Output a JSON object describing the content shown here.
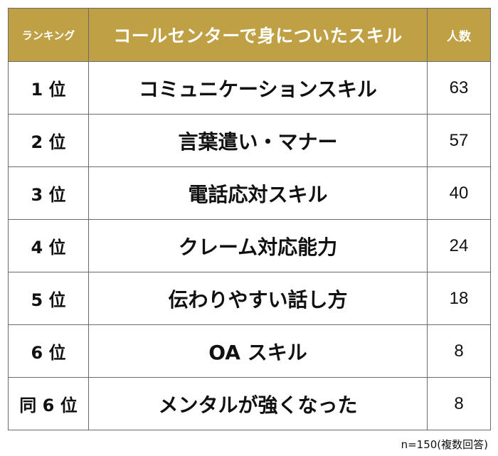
{
  "table": {
    "headers": {
      "rank": "ランキング",
      "skill": "コールセンターで身についたスキル",
      "count": "人数"
    },
    "rows": [
      {
        "rank": "1 位",
        "skill": "コミュニケーションスキル",
        "count": "63"
      },
      {
        "rank": "2 位",
        "skill": "言葉遣い・マナー",
        "count": "57"
      },
      {
        "rank": "3 位",
        "skill": "電話応対スキル",
        "count": "40"
      },
      {
        "rank": "4 位",
        "skill": "クレーム対応能力",
        "count": "24"
      },
      {
        "rank": "5 位",
        "skill": "伝わりやすい話し方",
        "count": "18"
      },
      {
        "rank": "6 位",
        "skill": "OA スキル",
        "count": "8"
      },
      {
        "rank": "同 6 位",
        "skill": "メンタルが強くなった",
        "count": "8"
      }
    ]
  },
  "note": "n=150(複数回答)",
  "colors": {
    "header_bg": "#bfa045",
    "header_text": "#ffffff",
    "border": "#6b6b6b"
  }
}
